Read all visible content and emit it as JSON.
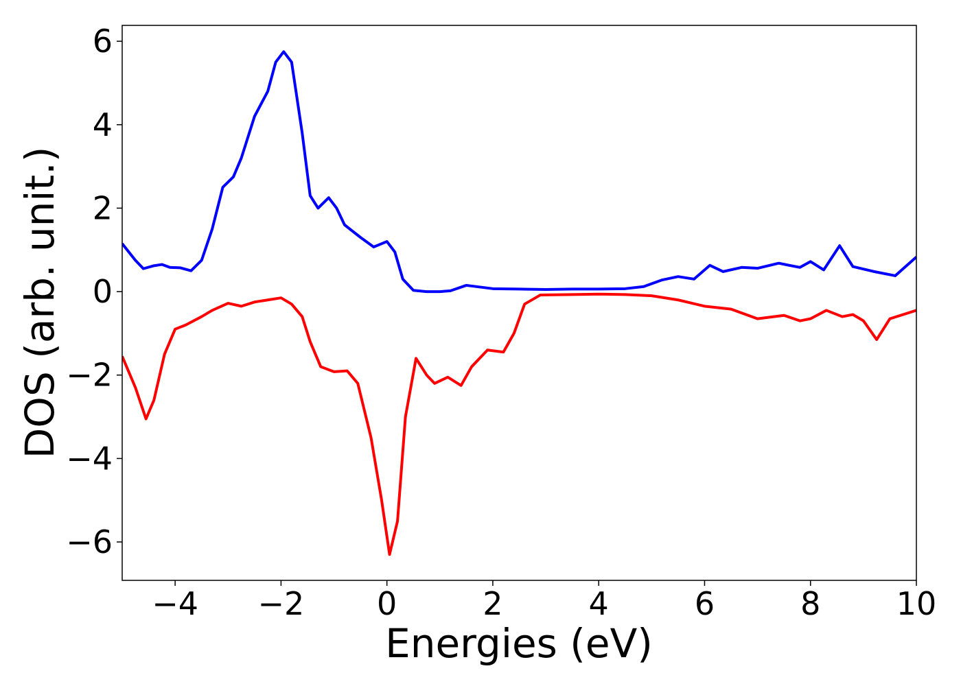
{
  "chart_data": {
    "type": "line",
    "xlabel": "Energies (eV)",
    "ylabel": "DOS (arb. unit.)",
    "xlim": [
      -5,
      10
    ],
    "ylim": [
      -6.92,
      6.38
    ],
    "xticks": [
      {
        "value": -4,
        "label": "−4"
      },
      {
        "value": -2,
        "label": "−2"
      },
      0,
      2,
      4,
      6,
      8,
      10
    ],
    "yticks": [
      {
        "value": -6,
        "label": "−6"
      },
      {
        "value": -4,
        "label": "−4"
      },
      {
        "value": -2,
        "label": "−2"
      },
      0,
      2,
      4,
      6
    ],
    "grid": false,
    "series": [
      {
        "color": "#0000ff",
        "x": [
          -5,
          -4.75,
          -4.6,
          -4.4,
          -4.25,
          -4.1,
          -3.9,
          -3.7,
          -3.5,
          -3.3,
          -3.1,
          -2.9,
          -2.75,
          -2.5,
          -2.25,
          -2.1,
          -1.95,
          -1.8,
          -1.6,
          -1.45,
          -1.3,
          -1.1,
          -0.95,
          -0.8,
          -0.5,
          -0.25,
          0,
          0.15,
          0.3,
          0.5,
          0.75,
          1,
          1.2,
          1.5,
          2,
          2.5,
          3,
          3.5,
          4,
          4.5,
          4.85,
          5.2,
          5.5,
          5.8,
          6.1,
          6.35,
          6.7,
          7,
          7.4,
          7.8,
          8,
          8.25,
          8.55,
          8.8,
          9.2,
          9.6,
          10
        ],
        "values": [
          1.15,
          0.75,
          0.55,
          0.62,
          0.65,
          0.58,
          0.57,
          0.5,
          0.75,
          1.5,
          2.5,
          2.75,
          3.2,
          4.2,
          4.8,
          5.5,
          5.75,
          5.5,
          3.8,
          2.3,
          2.0,
          2.25,
          2.0,
          1.6,
          1.3,
          1.07,
          1.2,
          0.95,
          0.3,
          0.03,
          0.0,
          0.0,
          0.02,
          0.15,
          0.07,
          0.06,
          0.05,
          0.06,
          0.06,
          0.07,
          0.12,
          0.28,
          0.36,
          0.3,
          0.63,
          0.48,
          0.58,
          0.56,
          0.68,
          0.58,
          0.72,
          0.52,
          1.1,
          0.6,
          0.48,
          0.38,
          0.83
        ]
      },
      {
        "color": "#ff0000",
        "x": [
          -5,
          -4.75,
          -4.55,
          -4.4,
          -4.2,
          -4.0,
          -3.8,
          -3.5,
          -3.3,
          -3.0,
          -2.75,
          -2.5,
          -2.25,
          -2.0,
          -1.8,
          -1.6,
          -1.45,
          -1.25,
          -1.0,
          -0.75,
          -0.55,
          -0.3,
          -0.1,
          0.05,
          0.2,
          0.35,
          0.55,
          0.75,
          0.9,
          1.15,
          1.4,
          1.6,
          1.9,
          2.2,
          2.4,
          2.6,
          2.9,
          3.5,
          4,
          4.5,
          5,
          5.5,
          6,
          6.5,
          7,
          7.5,
          7.8,
          8.0,
          8.3,
          8.6,
          8.8,
          9.0,
          9.25,
          9.5,
          10
        ],
        "values": [
          -1.55,
          -2.3,
          -3.05,
          -2.6,
          -1.5,
          -0.9,
          -0.8,
          -0.6,
          -0.45,
          -0.28,
          -0.35,
          -0.25,
          -0.2,
          -0.15,
          -0.3,
          -0.6,
          -1.2,
          -1.8,
          -1.92,
          -1.9,
          -2.2,
          -3.5,
          -5.0,
          -6.3,
          -5.5,
          -3.0,
          -1.6,
          -2.0,
          -2.2,
          -2.05,
          -2.25,
          -1.8,
          -1.4,
          -1.45,
          -1.0,
          -0.3,
          -0.08,
          -0.07,
          -0.06,
          -0.07,
          -0.1,
          -0.2,
          -0.35,
          -0.42,
          -0.65,
          -0.57,
          -0.7,
          -0.65,
          -0.45,
          -0.6,
          -0.55,
          -0.7,
          -1.15,
          -0.65,
          -0.45
        ]
      }
    ]
  }
}
